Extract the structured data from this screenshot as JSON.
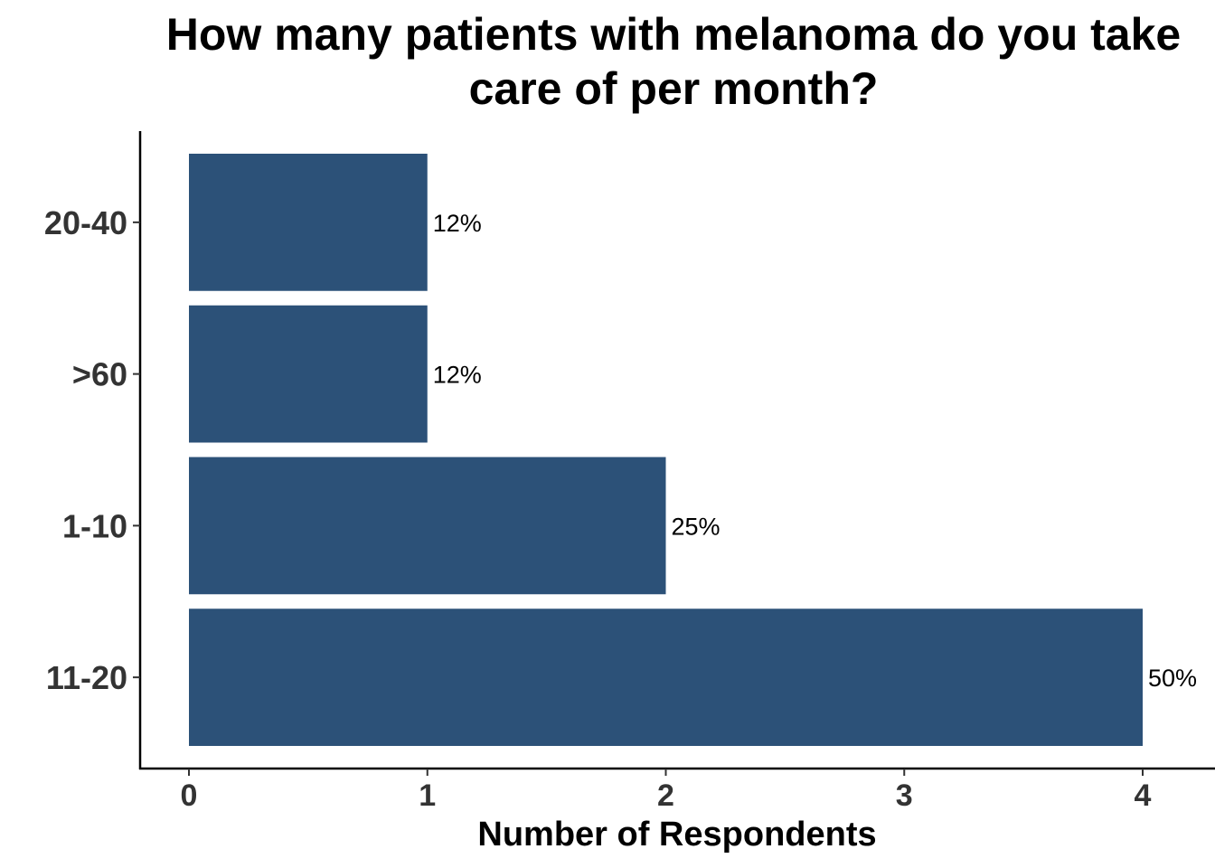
{
  "chart_data": {
    "type": "bar",
    "orientation": "horizontal",
    "title": "How many patients with melanoma do you take care of per month?",
    "xlabel": "Number of Respondents",
    "ylabel": "",
    "categories": [
      "20-40",
      ">60",
      "1-10",
      "11-20"
    ],
    "values": [
      1,
      1,
      2,
      4
    ],
    "data_labels": [
      "12%",
      "12%",
      "25%",
      "50%"
    ],
    "x_ticks": [
      "0",
      "1",
      "2",
      "3",
      "4"
    ],
    "xlim": [
      0,
      4
    ],
    "grid": false,
    "legend": "none",
    "bar_color": "#2c5178"
  }
}
